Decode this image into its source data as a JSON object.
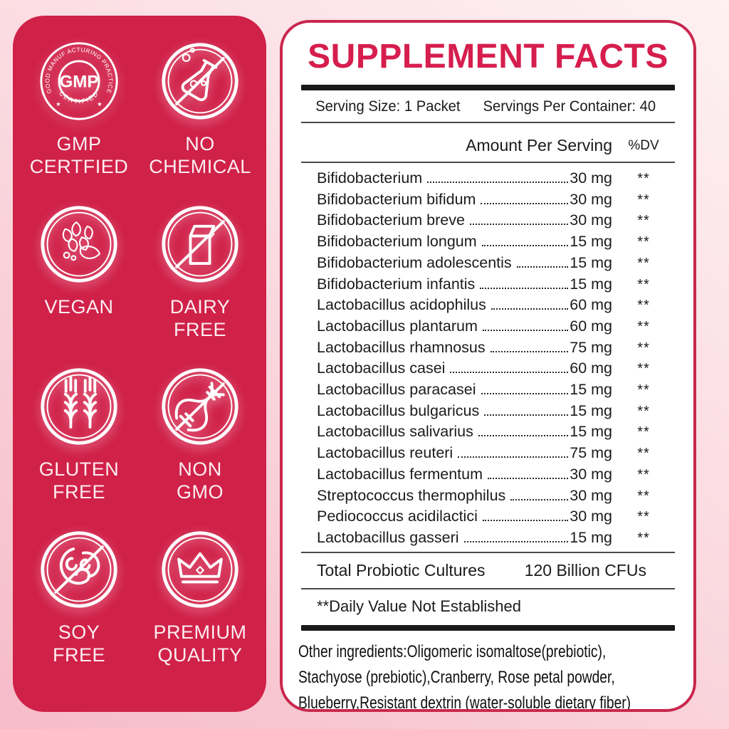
{
  "colors": {
    "panel_red": "#d02149",
    "crimson_accent": "#d61e4e",
    "panel_border": "#c9274e",
    "bar_black": "#191919",
    "bg_pink_light": "#fdf1f2",
    "bg_pink_deep": "#f6bcc8"
  },
  "badges": [
    {
      "id": "gmp-certified",
      "line1": "GMP",
      "line2": "CERTFIED"
    },
    {
      "id": "no-chemical",
      "line1": "NO",
      "line2": "CHEMICAL"
    },
    {
      "id": "vegan",
      "line1": "VEGAN",
      "line2": ""
    },
    {
      "id": "dairy-free",
      "line1": "DAIRY",
      "line2": "FREE"
    },
    {
      "id": "gluten-free",
      "line1": "GLUTEN",
      "line2": "FREE"
    },
    {
      "id": "non-gmo",
      "line1": "NON",
      "line2": "GMO"
    },
    {
      "id": "soy-free",
      "line1": "SOY",
      "line2": "FREE"
    },
    {
      "id": "premium-quality",
      "line1": "PREMIUM",
      "line2": "QUALITY"
    }
  ],
  "gmp_seal": {
    "arc_top": "GOOD MANUF ACTURING PRACTICE",
    "arc_bottom": "CERTIFIED",
    "center": "GMP",
    "star_left": "★",
    "star_right": "★"
  },
  "facts": {
    "title": "SUPPLEMENT FACTS",
    "serving_size": "Serving Size: 1 Packet",
    "servings_per_container": "Servings Per Container: 40",
    "col_amount": "Amount Per Serving",
    "col_dv": "%DV",
    "rows": [
      {
        "name": "Bifidobacterium",
        "amount": "30 mg",
        "dv": "**"
      },
      {
        "name": "Bifidobacterium bifidum",
        "amount": "30 mg",
        "dv": "**"
      },
      {
        "name": "Bifidobacterium breve",
        "amount": "30 mg",
        "dv": "**"
      },
      {
        "name": "Bifidobacterium longum",
        "amount": "15 mg",
        "dv": "**"
      },
      {
        "name": "Bifidobacterium adolescentis",
        "amount": "15 mg",
        "dv": "**"
      },
      {
        "name": "Bifidobacterium infantis",
        "amount": "15 mg",
        "dv": "**"
      },
      {
        "name": "Lactobacillus acidophilus",
        "amount": "60 mg",
        "dv": "**"
      },
      {
        "name": "Lactobacillus plantarum",
        "amount": "60 mg",
        "dv": "**"
      },
      {
        "name": "Lactobacillus rhamnosus",
        "amount": "75 mg",
        "dv": "**"
      },
      {
        "name": "Lactobacillus casei",
        "amount": "60 mg",
        "dv": "**"
      },
      {
        "name": "Lactobacillus paracasei",
        "amount": "15 mg",
        "dv": "**"
      },
      {
        "name": "Lactobacillus bulgaricus",
        "amount": "15 mg",
        "dv": "**"
      },
      {
        "name": "Lactobacillus salivarius",
        "amount": "15 mg",
        "dv": "**"
      },
      {
        "name": "Lactobacillus reuteri",
        "amount": "75 mg",
        "dv": "**"
      },
      {
        "name": "Lactobacillus fermentum",
        "amount": "30 mg",
        "dv": "**"
      },
      {
        "name": "Streptococcus thermophilus",
        "amount": "30 mg",
        "dv": "**"
      },
      {
        "name": "Pediococcus acidilactici",
        "amount": "30 mg",
        "dv": "**"
      },
      {
        "name": "Lactobacillus gasseri",
        "amount": "15 mg",
        "dv": "**"
      }
    ],
    "total_label": "Total Probiotic Cultures",
    "total_value": "120 Billion CFUs",
    "dv_note": "**Daily Value Not Established",
    "other_ingredients_lines": [
      "Other ingredients:Oligomeric isomaltose(prebiotic),",
      "Stachyose (prebiotic),Cranberry, Rose petal powder,",
      "Blueberry,Resistant dextrin (water-soluble dietary fiber)"
    ]
  }
}
